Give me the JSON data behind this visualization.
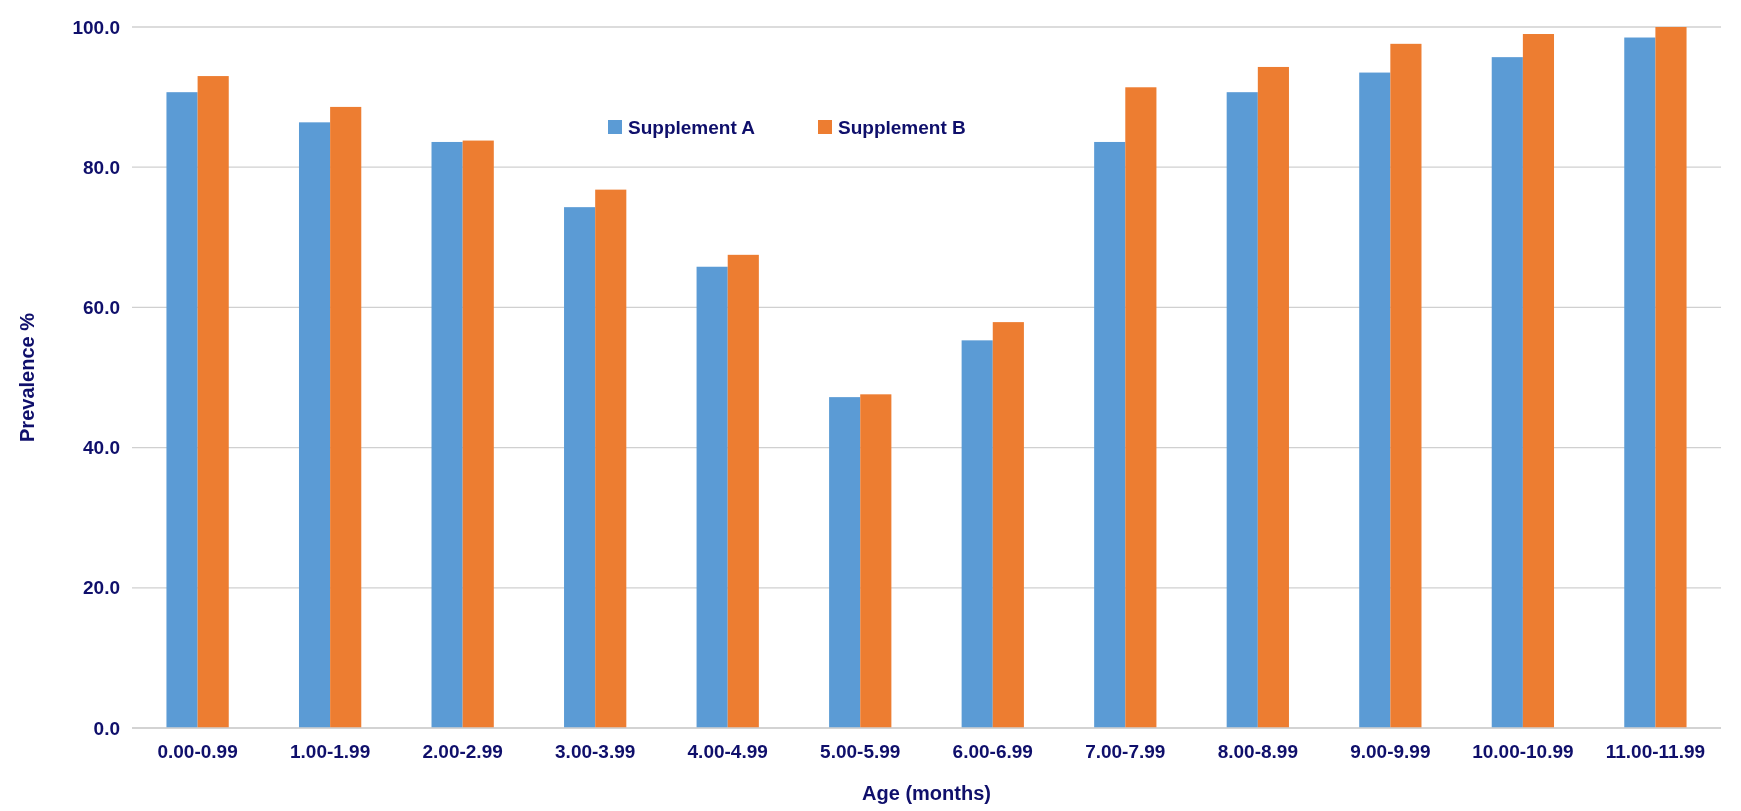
{
  "chart_data": {
    "type": "bar",
    "xlabel": "Age (months)",
    "ylabel": "Prevalence %",
    "categories": [
      "0.00-0.99",
      "1.00-1.99",
      "2.00-2.99",
      "3.00-3.99",
      "4.00-4.99",
      "5.00-5.99",
      "6.00-6.99",
      "7.00-7.99",
      "8.00-8.99",
      "9.00-9.99",
      "10.00-10.99",
      "11.00-11.99"
    ],
    "series": [
      {
        "name": "Supplement A",
        "color": "#5b9bd5",
        "values": [
          90.7,
          86.4,
          83.6,
          74.3,
          65.8,
          47.2,
          55.3,
          83.6,
          90.7,
          93.5,
          95.7,
          98.5
        ]
      },
      {
        "name": "Supplement B",
        "color": "#ed7d31",
        "values": [
          93.0,
          88.6,
          83.8,
          76.8,
          67.5,
          47.6,
          57.9,
          91.4,
          94.3,
          97.6,
          99.0,
          100.0
        ]
      }
    ],
    "ylim": [
      0,
      100
    ],
    "yticks": [
      {
        "value": 0,
        "label": "0.0"
      },
      {
        "value": 20,
        "label": "20.0"
      },
      {
        "value": 40,
        "label": "40.0"
      },
      {
        "value": 60,
        "label": "60.0"
      },
      {
        "value": 80,
        "label": "80.0"
      },
      {
        "value": 100,
        "label": "100.0"
      }
    ],
    "grid": "y",
    "legend": "top"
  }
}
